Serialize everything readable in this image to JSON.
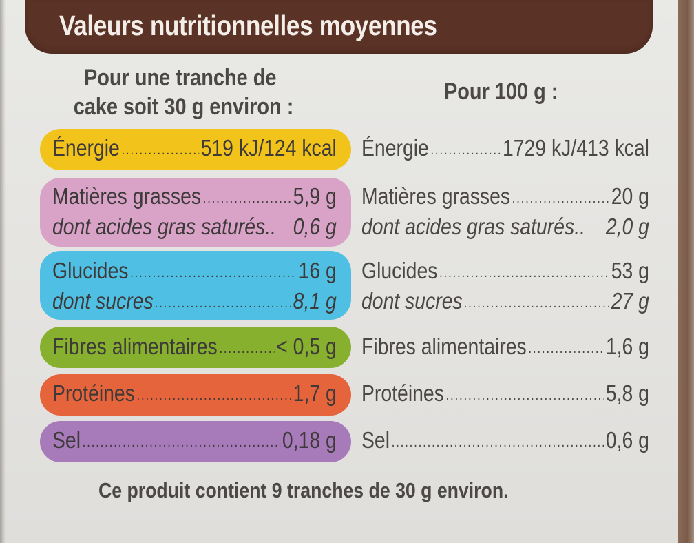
{
  "title": "Valeurs nutritionnelles moyennes",
  "header_left_line1": "Pour une tranche de",
  "header_left_line2": "cake soit 30 g environ :",
  "header_right": "Pour 100 g :",
  "colors": {
    "banner": "#5a3226",
    "energy": "#f2c41b",
    "fats": "#d9a3c8",
    "carbs": "#4fc0e4",
    "fiber": "#86b02e",
    "protein": "#e6643c",
    "salt": "#a77ab9"
  },
  "rows": [
    {
      "label": "Énergie",
      "per_slice": "519 kJ/124 kcal",
      "per_100g": "1729 kJ/413 kcal"
    },
    {
      "label": "Matières grasses",
      "per_slice": "5,9 g",
      "per_100g": "20 g"
    },
    {
      "label": "dont acides gras saturés..",
      "per_slice": "0,6 g",
      "per_100g": "2,0 g"
    },
    {
      "label": "Glucides",
      "per_slice": "16 g",
      "per_100g": "53 g"
    },
    {
      "label": "dont sucres",
      "per_slice": "8,1 g",
      "per_100g": "27 g"
    },
    {
      "label": "Fibres alimentaires",
      "per_slice": "< 0,5 g",
      "per_100g": "1,6 g"
    },
    {
      "label": "Protéines",
      "per_slice": "1,7 g",
      "per_100g": "5,8 g"
    },
    {
      "label": "Sel",
      "per_slice": "0,18 g",
      "per_100g": "0,6 g"
    }
  ],
  "footer": "Ce produit contient 9 tranches de 30 g environ."
}
